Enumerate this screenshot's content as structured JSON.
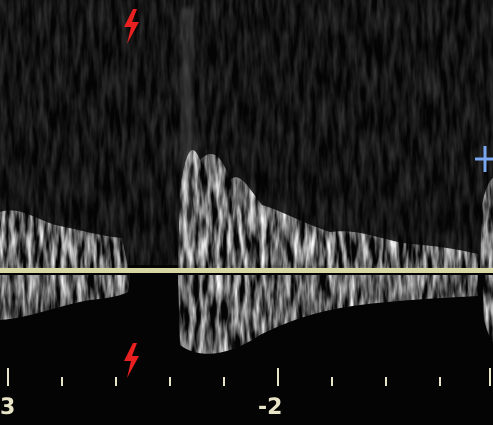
{
  "time_axis": {
    "labels": [
      "3",
      "-2"
    ]
  }
}
